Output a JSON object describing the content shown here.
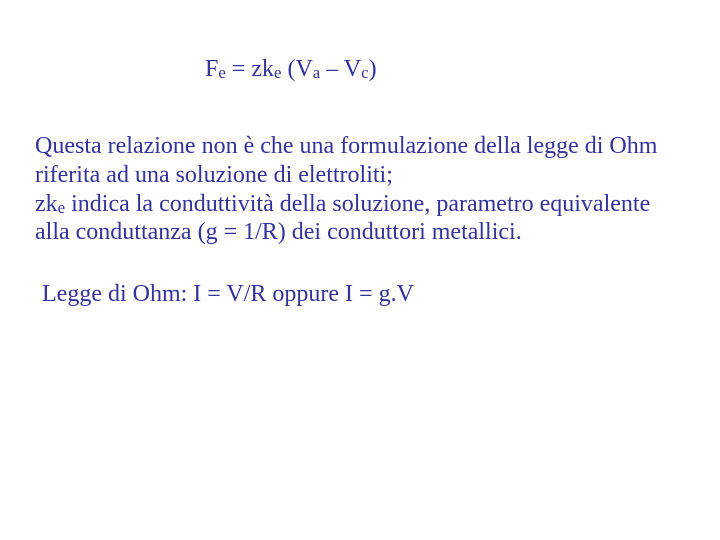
{
  "colors": {
    "text": "#333399",
    "background": "#ffffff"
  },
  "typography": {
    "family": "Times New Roman",
    "base_size_pt": 24,
    "sub_scale": 0.7
  },
  "formula": {
    "F": "F",
    "F_sub": "e",
    "eq": " = zk",
    "k_sub": "e",
    "open": " (V",
    "Va_sub": "a",
    "mid": " – V",
    "Vc_sub": "c",
    "close": ")"
  },
  "body1": {
    "line1": "Questa relazione non è che una formulazione della legge di Ohm",
    "line2": "riferita ad una soluzione di elettroliti;",
    "line3_pre": "zk",
    "line3_sub": "e",
    "line3_post": " indica la conduttività della soluzione, parametro equivalente",
    "line4": "alla conduttanza  (g = 1/R) dei conduttori metallici."
  },
  "body2": {
    "line1": "Legge di Ohm: I = V/R   oppure   I = g.V"
  }
}
